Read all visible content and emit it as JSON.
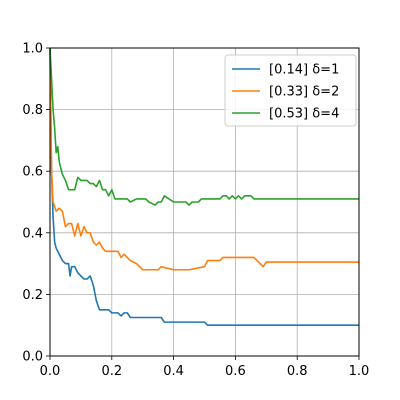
{
  "chart_data": {
    "type": "line",
    "title": "",
    "xlabel": "",
    "ylabel": "",
    "xlim": [
      0.0,
      1.0
    ],
    "ylim": [
      0.0,
      1.0
    ],
    "grid": true,
    "legend_position": "top-right",
    "x_ticks": [
      "0.0",
      "0.2",
      "0.4",
      "0.6",
      "0.8",
      "1.0"
    ],
    "y_ticks": [
      "0.0",
      "0.2",
      "0.4",
      "0.6",
      "0.8",
      "1.0"
    ],
    "series": [
      {
        "name": "[0.14] δ=1",
        "color": "#1f77b4",
        "x": [
          0.0,
          0.005,
          0.01,
          0.015,
          0.02,
          0.03,
          0.04,
          0.05,
          0.06,
          0.065,
          0.07,
          0.08,
          0.09,
          0.1,
          0.11,
          0.12,
          0.13,
          0.14,
          0.15,
          0.16,
          0.17,
          0.19,
          0.2,
          0.22,
          0.23,
          0.24,
          0.25,
          0.26,
          0.3,
          0.33,
          0.36,
          0.37,
          0.45,
          0.5,
          0.51,
          0.6,
          0.7,
          0.8,
          0.9,
          1.0
        ],
        "y": [
          1.0,
          0.6,
          0.45,
          0.37,
          0.35,
          0.33,
          0.31,
          0.3,
          0.3,
          0.26,
          0.29,
          0.29,
          0.27,
          0.26,
          0.25,
          0.25,
          0.26,
          0.23,
          0.18,
          0.15,
          0.15,
          0.15,
          0.14,
          0.14,
          0.13,
          0.14,
          0.14,
          0.125,
          0.125,
          0.125,
          0.125,
          0.11,
          0.11,
          0.11,
          0.1,
          0.1,
          0.1,
          0.1,
          0.1,
          0.1
        ]
      },
      {
        "name": "[0.33] δ=2",
        "color": "#ff7f0e",
        "x": [
          0.0,
          0.005,
          0.01,
          0.02,
          0.03,
          0.04,
          0.05,
          0.06,
          0.07,
          0.08,
          0.085,
          0.09,
          0.1,
          0.11,
          0.12,
          0.13,
          0.14,
          0.15,
          0.16,
          0.17,
          0.18,
          0.2,
          0.22,
          0.23,
          0.24,
          0.25,
          0.26,
          0.28,
          0.3,
          0.33,
          0.35,
          0.36,
          0.4,
          0.45,
          0.5,
          0.51,
          0.55,
          0.56,
          0.6,
          0.65,
          0.66,
          0.68,
          0.69,
          0.7,
          0.8,
          0.9,
          1.0
        ],
        "y": [
          1.0,
          0.6,
          0.5,
          0.47,
          0.48,
          0.47,
          0.42,
          0.43,
          0.43,
          0.39,
          0.41,
          0.43,
          0.39,
          0.42,
          0.4,
          0.4,
          0.37,
          0.36,
          0.37,
          0.35,
          0.34,
          0.34,
          0.34,
          0.32,
          0.33,
          0.32,
          0.31,
          0.3,
          0.28,
          0.28,
          0.28,
          0.29,
          0.28,
          0.28,
          0.29,
          0.31,
          0.31,
          0.32,
          0.32,
          0.32,
          0.32,
          0.3,
          0.29,
          0.305,
          0.305,
          0.305,
          0.305
        ]
      },
      {
        "name": "[0.53] δ=4",
        "color": "#2ca02c",
        "x": [
          0.0,
          0.005,
          0.01,
          0.015,
          0.02,
          0.025,
          0.03,
          0.04,
          0.05,
          0.06,
          0.07,
          0.08,
          0.09,
          0.1,
          0.11,
          0.12,
          0.13,
          0.14,
          0.15,
          0.16,
          0.17,
          0.18,
          0.19,
          0.2,
          0.21,
          0.22,
          0.25,
          0.26,
          0.28,
          0.3,
          0.31,
          0.32,
          0.34,
          0.35,
          0.36,
          0.37,
          0.4,
          0.42,
          0.44,
          0.45,
          0.46,
          0.48,
          0.49,
          0.5,
          0.55,
          0.56,
          0.57,
          0.58,
          0.59,
          0.6,
          0.61,
          0.62,
          0.63,
          0.65,
          0.66,
          0.7,
          0.8,
          0.9,
          1.0
        ],
        "y": [
          1.0,
          0.9,
          0.8,
          0.74,
          0.66,
          0.68,
          0.63,
          0.59,
          0.57,
          0.54,
          0.54,
          0.54,
          0.58,
          0.57,
          0.57,
          0.57,
          0.56,
          0.56,
          0.55,
          0.57,
          0.54,
          0.54,
          0.52,
          0.54,
          0.51,
          0.51,
          0.51,
          0.5,
          0.51,
          0.51,
          0.51,
          0.5,
          0.49,
          0.5,
          0.5,
          0.52,
          0.5,
          0.5,
          0.5,
          0.49,
          0.5,
          0.5,
          0.51,
          0.51,
          0.51,
          0.52,
          0.52,
          0.51,
          0.52,
          0.51,
          0.52,
          0.51,
          0.52,
          0.52,
          0.51,
          0.51,
          0.51,
          0.51,
          0.51
        ]
      }
    ]
  }
}
